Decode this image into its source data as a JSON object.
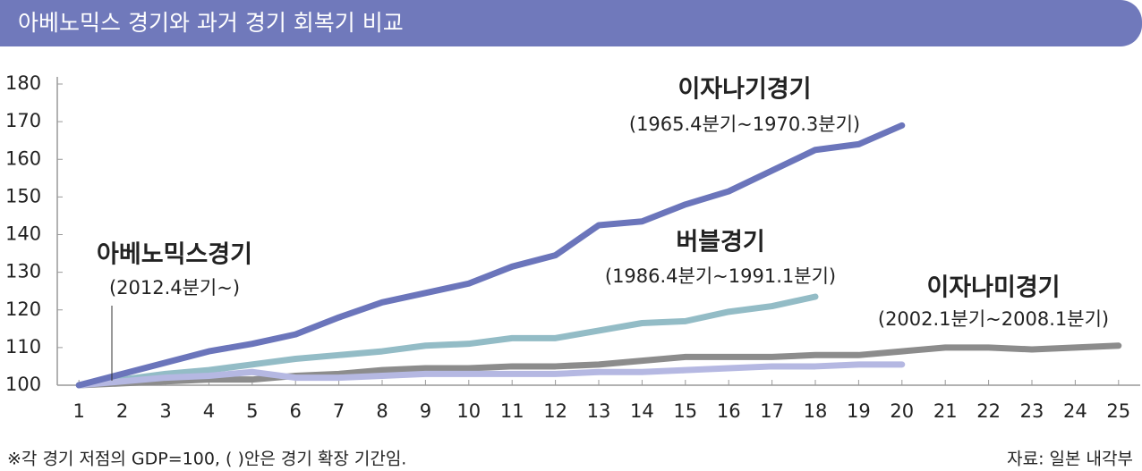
{
  "title": "아베노믹스 경기와 과거 경기 회복기 비교",
  "chart_data": {
    "type": "line",
    "x": [
      1,
      2,
      3,
      4,
      5,
      6,
      7,
      8,
      9,
      10,
      11,
      12,
      13,
      14,
      15,
      16,
      17,
      18,
      19,
      20,
      21,
      22,
      23,
      24,
      25
    ],
    "xlim": [
      0.5,
      25.5
    ],
    "xticks": [
      1,
      2,
      3,
      4,
      5,
      6,
      7,
      8,
      9,
      10,
      11,
      12,
      13,
      14,
      15,
      16,
      17,
      18,
      19,
      20,
      21,
      22,
      23,
      24,
      25
    ],
    "ylim": [
      100,
      180
    ],
    "yticks": [
      100,
      110,
      120,
      130,
      140,
      150,
      160,
      170,
      180
    ],
    "series": [
      {
        "name": "이자나기경기",
        "color": "#6b75bb",
        "values": [
          100,
          103,
          106,
          109,
          111,
          113.5,
          118,
          122,
          124.5,
          127,
          131.5,
          134.5,
          142.5,
          143.5,
          148,
          151.5,
          157,
          162.5,
          164,
          169,
          null,
          null,
          null,
          null,
          null
        ]
      },
      {
        "name": "버블경기",
        "color": "#93bcc6",
        "values": [
          100,
          101.5,
          103,
          104,
          105.5,
          107,
          108,
          109,
          110.5,
          111,
          112.5,
          112.5,
          114.5,
          116.5,
          117,
          119.5,
          121,
          123.5,
          null,
          null,
          null,
          null,
          null,
          null,
          null
        ]
      },
      {
        "name": "이자나미경기",
        "color": "#8c8c8c",
        "values": [
          100,
          100.5,
          101,
          101.5,
          101.5,
          102.5,
          103,
          104,
          104.5,
          104.5,
          105,
          105,
          105.5,
          106.5,
          107.5,
          107.5,
          107.5,
          108,
          108,
          109,
          110,
          110,
          109.5,
          110,
          110.5
        ]
      },
      {
        "name": "아베노믹스경기",
        "color": "#b5b8e2",
        "values": [
          100,
          101,
          102,
          102.5,
          103.5,
          102,
          102,
          102.5,
          103,
          103,
          103,
          103,
          103.5,
          103.5,
          104,
          104.5,
          105,
          105,
          105.5,
          105.5,
          null,
          null,
          null,
          null,
          null
        ]
      }
    ],
    "annotations": [
      {
        "text": "이자나기경기",
        "subtext": "(1965.4분기~1970.3분기)"
      },
      {
        "text": "버블경기",
        "subtext": "(1986.4분기~1991.1분기)"
      },
      {
        "text": "이자나미경기",
        "subtext": "(2002.1분기~2008.1분기)"
      },
      {
        "text": "아베노믹스경기",
        "subtext": "(2012.4분기~)"
      }
    ]
  },
  "footnote": "※각 경기 저점의 GDP=100, ( )안은 경기 확장 기간임.",
  "source": "자료: 일본 내각부"
}
